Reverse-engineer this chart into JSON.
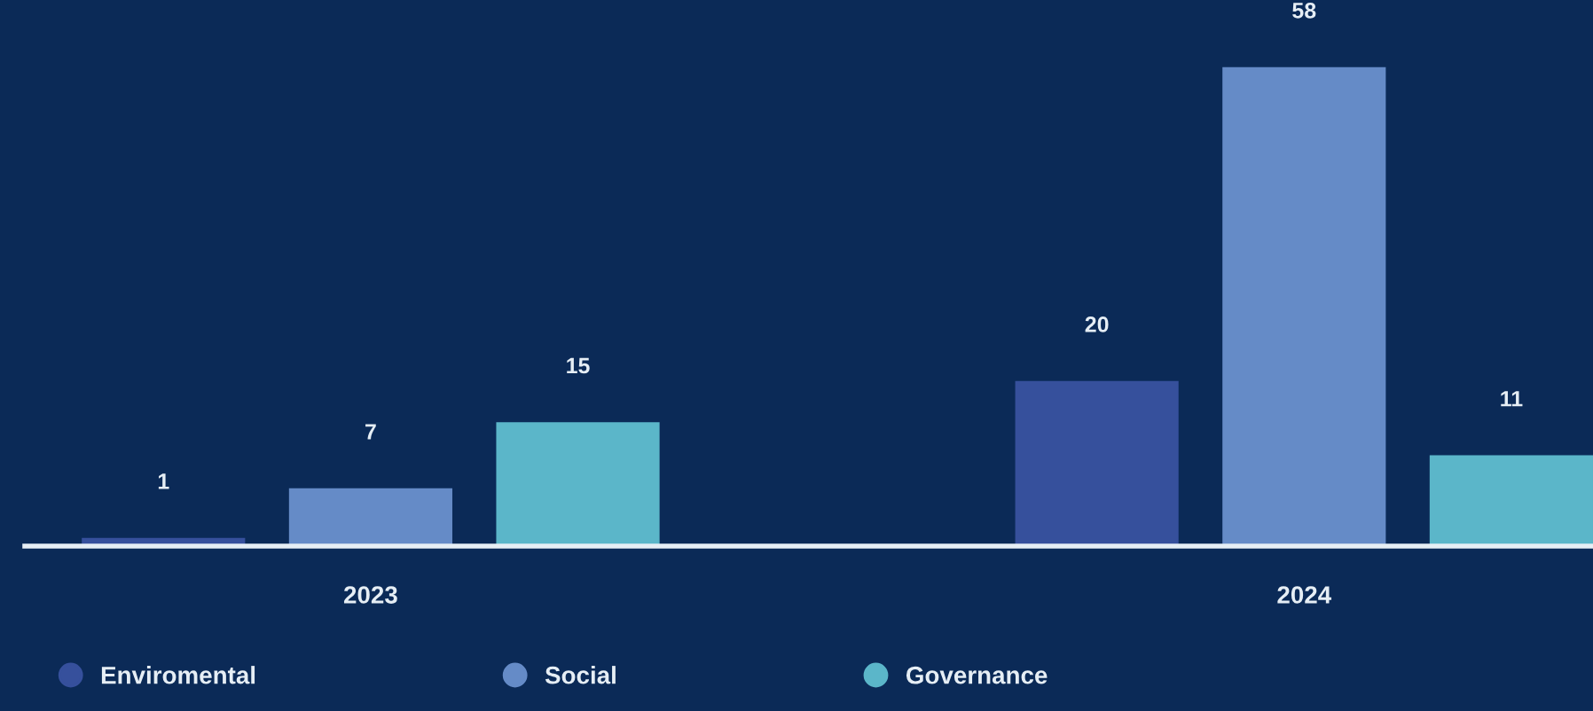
{
  "chart_data": {
    "type": "bar",
    "categories": [
      "2023",
      "2024"
    ],
    "series": [
      {
        "name": "Enviromental",
        "color": "#36509c",
        "values": [
          1,
          20
        ]
      },
      {
        "name": "Social",
        "color": "#658bc7",
        "values": [
          7,
          58
        ]
      },
      {
        "name": "Governance",
        "color": "#5bb6c9",
        "values": [
          15,
          11
        ]
      }
    ],
    "data_labels": true,
    "legend": "bottom",
    "grid": false,
    "tick_labels": "x"
  }
}
